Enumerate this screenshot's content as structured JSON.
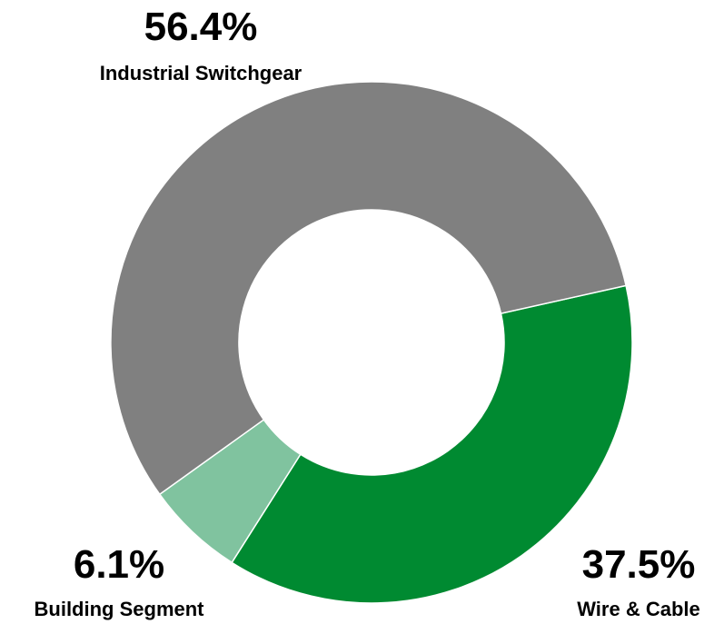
{
  "chart_data": {
    "type": "pie",
    "variant": "donut",
    "title": "",
    "slices": [
      {
        "label": "Industrial Switchgear",
        "value": 56.4,
        "value_label": "56.4%",
        "color": "#808080"
      },
      {
        "label": "Wire & Cable",
        "value": 37.5,
        "value_label": "37.5%",
        "color": "#008A31"
      },
      {
        "label": "Building Segment",
        "value": 6.1,
        "value_label": "6.1%",
        "color": "#80C39F"
      }
    ],
    "legend": "none"
  }
}
